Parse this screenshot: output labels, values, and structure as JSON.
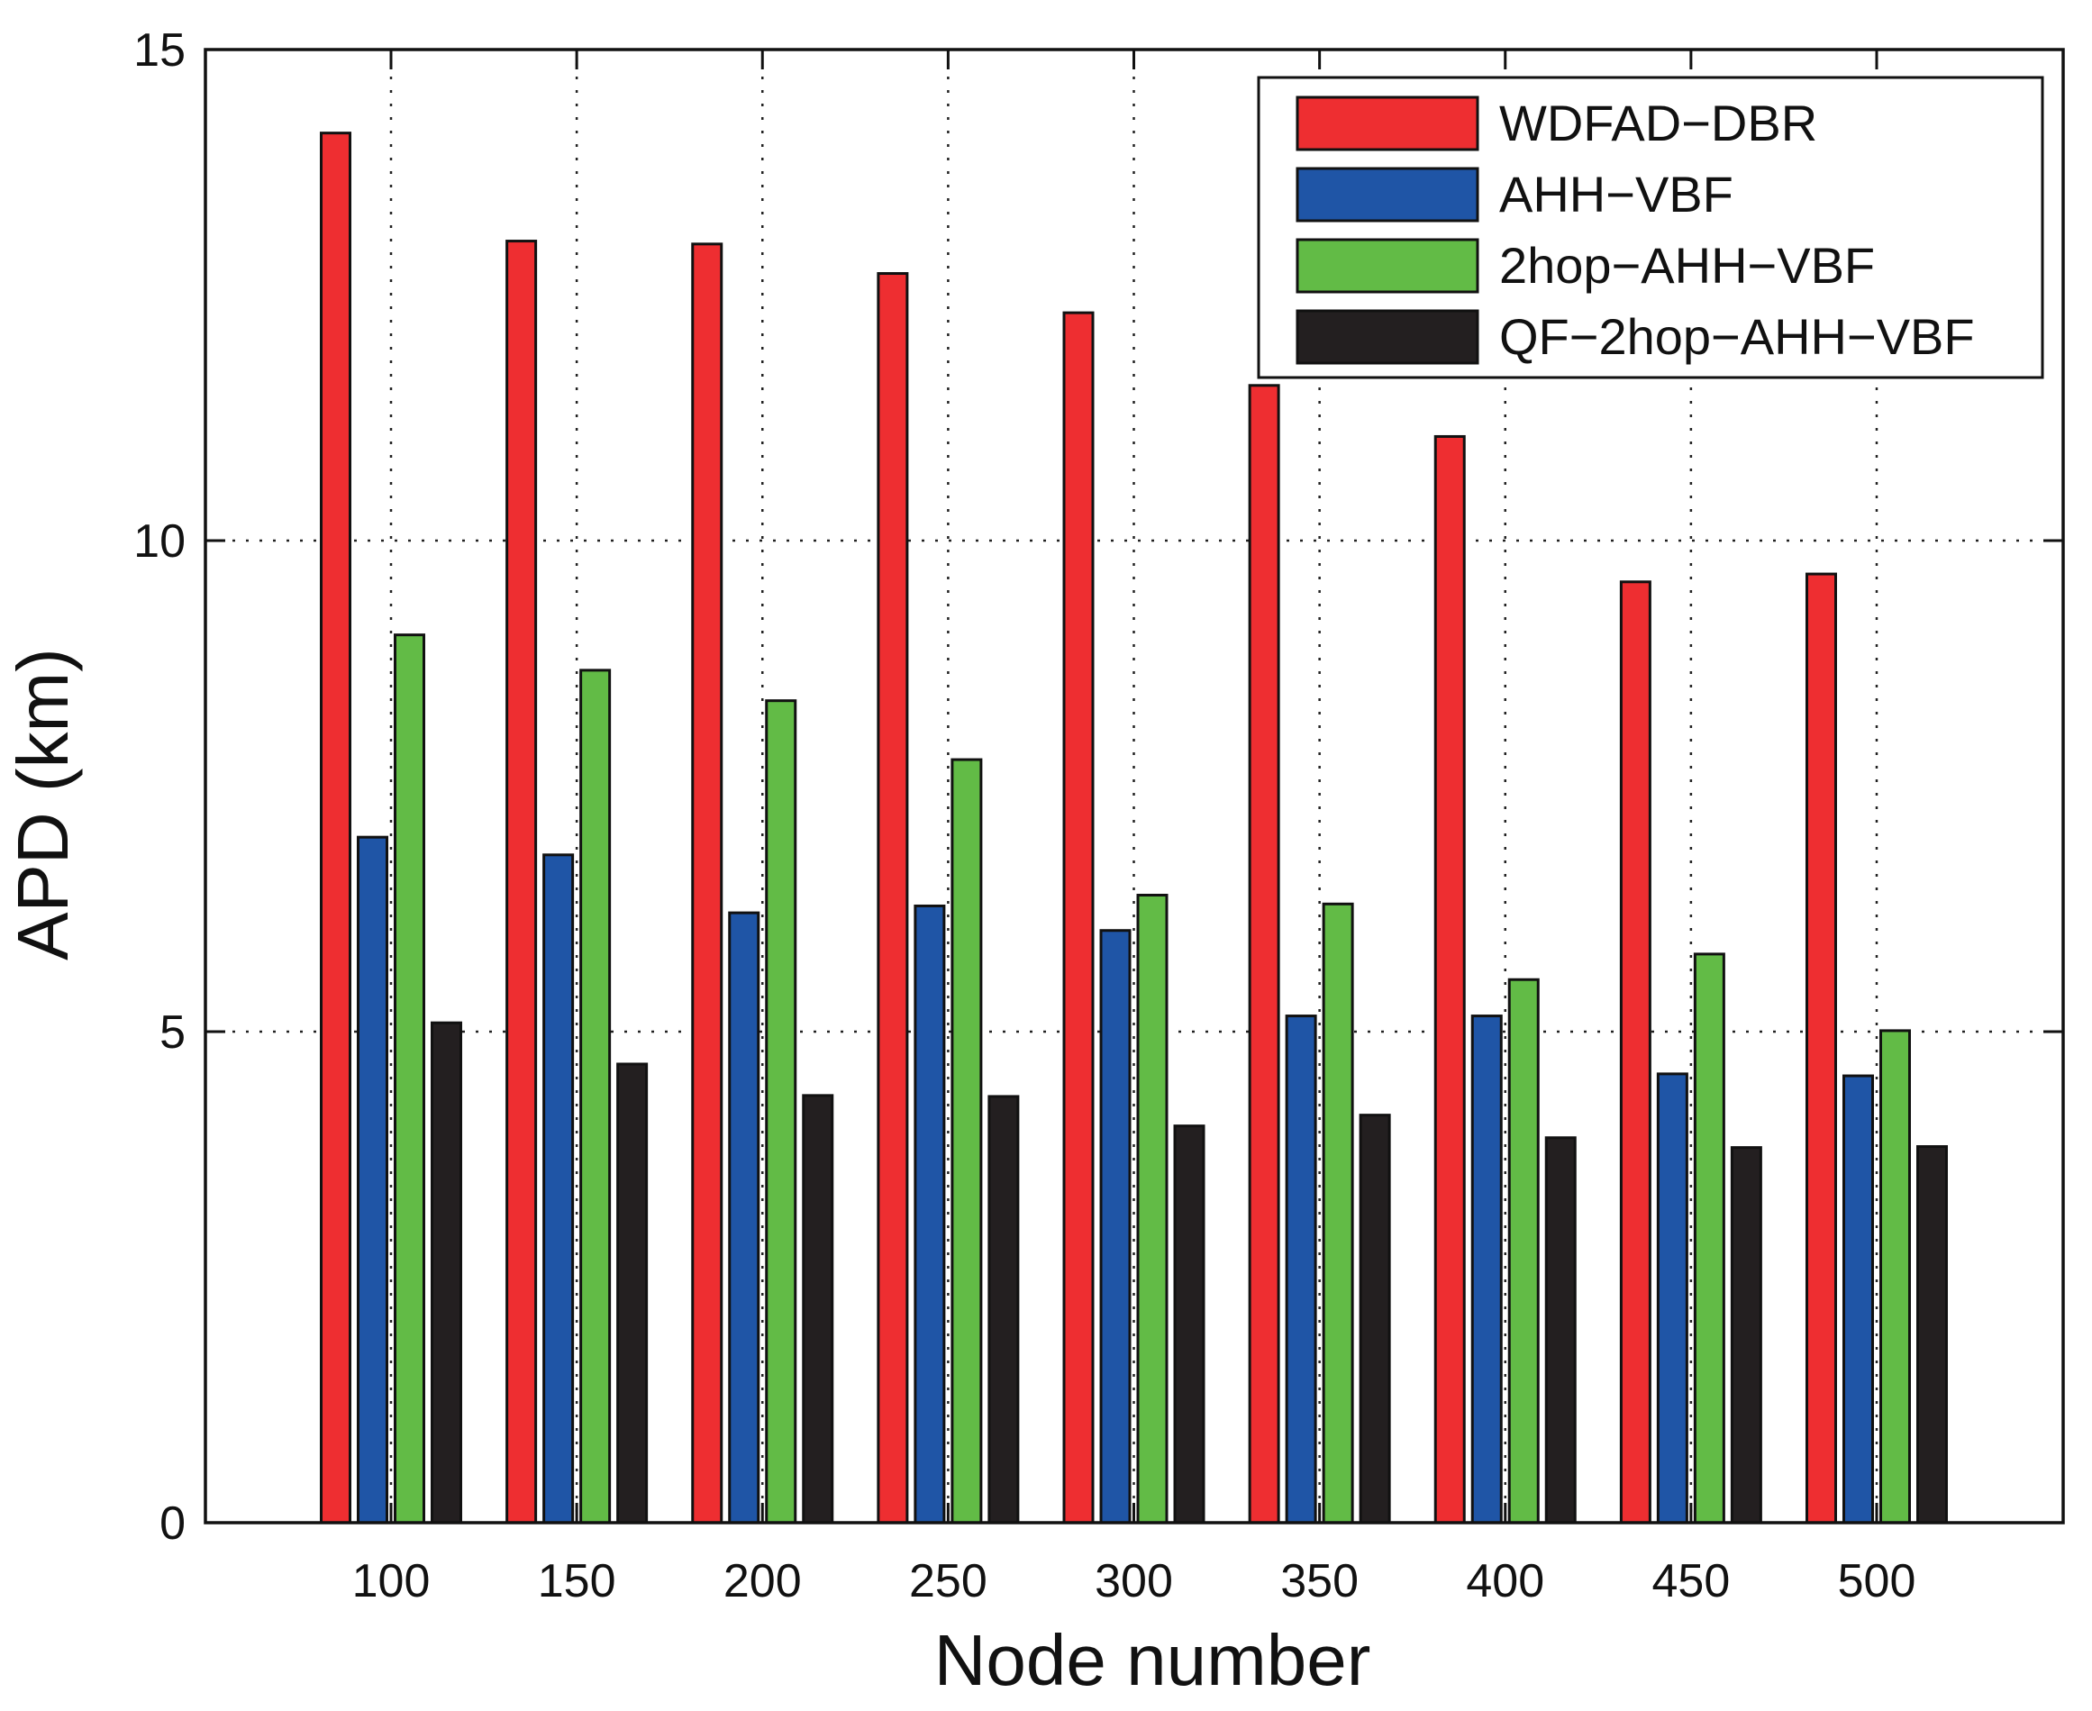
{
  "chart_data": {
    "type": "bar",
    "title": "",
    "xlabel": "Node number",
    "ylabel": "APD (km)",
    "ylim": [
      0,
      15
    ],
    "yticks": [
      0,
      5,
      10,
      15
    ],
    "grid": true,
    "legend_position": "top-right",
    "categories": [
      "100",
      "150",
      "200",
      "250",
      "300",
      "350",
      "400",
      "450",
      "500"
    ],
    "series": [
      {
        "name": "WDFAD−DBR",
        "color": "#ee2e31",
        "values": [
          14.15,
          13.05,
          13.02,
          12.72,
          12.32,
          11.58,
          11.06,
          9.58,
          9.66
        ]
      },
      {
        "name": "AHH−VBF",
        "color": "#1f55a6",
        "values": [
          6.98,
          6.8,
          6.21,
          6.28,
          6.03,
          5.16,
          5.16,
          4.57,
          4.55
        ]
      },
      {
        "name": "2hop−AHH−VBF",
        "color": "#62bb46",
        "values": [
          9.04,
          8.68,
          8.37,
          7.77,
          6.39,
          6.3,
          5.53,
          5.79,
          5.01
        ]
      },
      {
        "name": "QF−2hop−AHH−VBF",
        "color": "#231f20",
        "values": [
          5.09,
          4.67,
          4.35,
          4.34,
          4.04,
          4.15,
          3.92,
          3.82,
          3.83
        ]
      }
    ]
  }
}
